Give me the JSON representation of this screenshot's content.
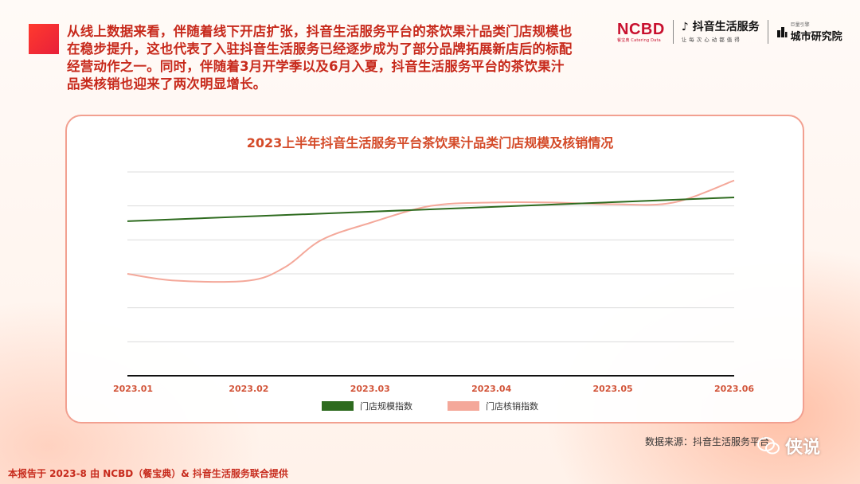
{
  "intro_text": "从线上数据来看，伴随着线下开店扩张，抖音生活服务平台的茶饮果汁品类门店规模也在稳步提升，这也代表了入驻抖音生活服务已经逐步成为了部分品牌拓展新店后的标配经营动作之一。同时，伴随着3月开学季以及6月入夏，抖音生活服务平台的茶饮果汁品类核销也迎来了两次明显增长。",
  "logos": {
    "ncbd": "NCBD",
    "ncbd_sub": "餐宝典 Catering Data",
    "douyin": "抖音生活服务",
    "douyin_sub": "让每次心动都值得",
    "city_top": "巨量引擎",
    "city": "城市研究院"
  },
  "chart_data": {
    "type": "line",
    "title": "2023上半年抖音生活服务平台茶饮果汁品类门店规模及核销情况",
    "categories": [
      "2023.01",
      "2023.02",
      "2023.03",
      "2023.04",
      "2023.05",
      "2023.06"
    ],
    "ylim": [
      0,
      60
    ],
    "grid": true,
    "legend_position": "bottom",
    "series": [
      {
        "name": "门店规模指数",
        "color": "#2e6b1f",
        "x": [
          0,
          5
        ],
        "values": [
          45.5,
          52.5
        ]
      },
      {
        "name": "门店核销指数",
        "color": "#f4a89a",
        "x": [
          0,
          0.4,
          1,
          1.3,
          1.6,
          2,
          2.5,
          3,
          3.5,
          4,
          4.5,
          5
        ],
        "values": [
          30,
          28,
          28,
          32,
          40,
          45,
          50,
          51,
          51,
          50.5,
          51,
          57.5
        ]
      }
    ]
  },
  "source_text": "数据来源：抖音生活服务平台",
  "footer_text": "本报告于 2023-8 由 NCBD（餐宝典）& 抖音生活服务联合提供",
  "watermark": "侠说"
}
